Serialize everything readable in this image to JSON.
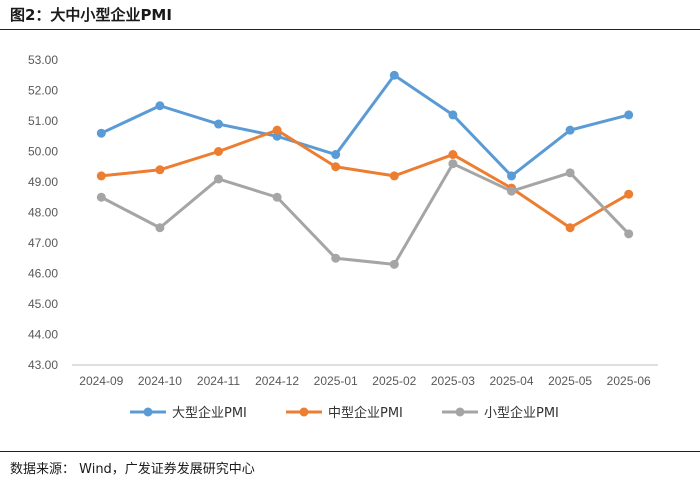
{
  "header": {
    "title": "图2：大中小型企业PMI"
  },
  "footer": {
    "source": "数据来源：   Wind，广发证券发展研究中心"
  },
  "chart_data": {
    "type": "line",
    "categories": [
      "2024-09",
      "2024-10",
      "2024-11",
      "2024-12",
      "2025-01",
      "2025-02",
      "2025-03",
      "2025-04",
      "2025-05",
      "2025-06"
    ],
    "ylim": [
      43,
      53
    ],
    "yticks": [
      "43.00",
      "44.00",
      "45.00",
      "46.00",
      "47.00",
      "48.00",
      "49.00",
      "50.00",
      "51.00",
      "52.00",
      "53.00"
    ],
    "grid": false,
    "legend_position": "bottom",
    "series": [
      {
        "name": "大型企业PMI",
        "color": "#5B9BD5",
        "values": [
          50.6,
          51.5,
          50.9,
          50.5,
          49.9,
          52.5,
          51.2,
          49.2,
          50.7,
          51.2
        ]
      },
      {
        "name": "中型企业PMI",
        "color": "#ED7D31",
        "values": [
          49.2,
          49.4,
          50.0,
          50.7,
          49.5,
          49.2,
          49.9,
          48.8,
          47.5,
          48.6
        ]
      },
      {
        "name": "小型企业PMI",
        "color": "#A5A5A5",
        "values": [
          48.5,
          47.5,
          49.1,
          48.5,
          46.5,
          46.3,
          49.6,
          48.7,
          49.3,
          47.3
        ]
      }
    ]
  }
}
